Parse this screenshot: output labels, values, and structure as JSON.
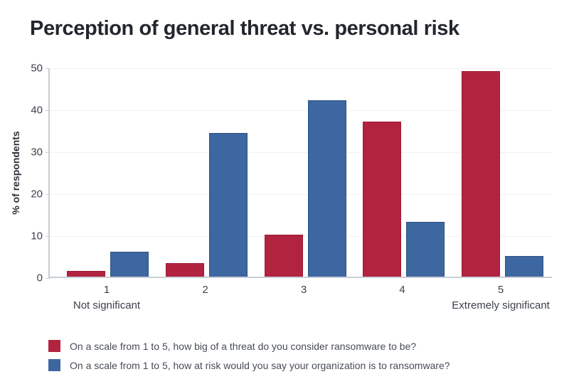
{
  "title": "Perception of general threat vs. personal risk",
  "chart_data": {
    "type": "bar",
    "categories": [
      "1",
      "2",
      "3",
      "4",
      "5"
    ],
    "series": [
      {
        "key": "threat",
        "name": "On a scale from 1 to 5, how big of a threat do you consider ransomware to be?",
        "color": "#b22340",
        "border_color": "#9c1b38",
        "values": [
          1.3,
          3.2,
          10,
          37,
          49
        ]
      },
      {
        "key": "risk",
        "name": "On a scale from 1 to 5, how at risk would you say your organization is to ransomware?",
        "color": "#3d67a1",
        "border_color": "#2e507f",
        "values": [
          6,
          34.3,
          42,
          13,
          5
        ]
      }
    ],
    "ylabel": "% of respondents",
    "ylim": [
      0,
      50
    ],
    "yticks": [
      0,
      10,
      20,
      30,
      40,
      50
    ],
    "x_endpoint_labels": {
      "left": "Not significant",
      "right": "Extremely significant"
    },
    "grid": true,
    "legend_position": "bottom"
  }
}
